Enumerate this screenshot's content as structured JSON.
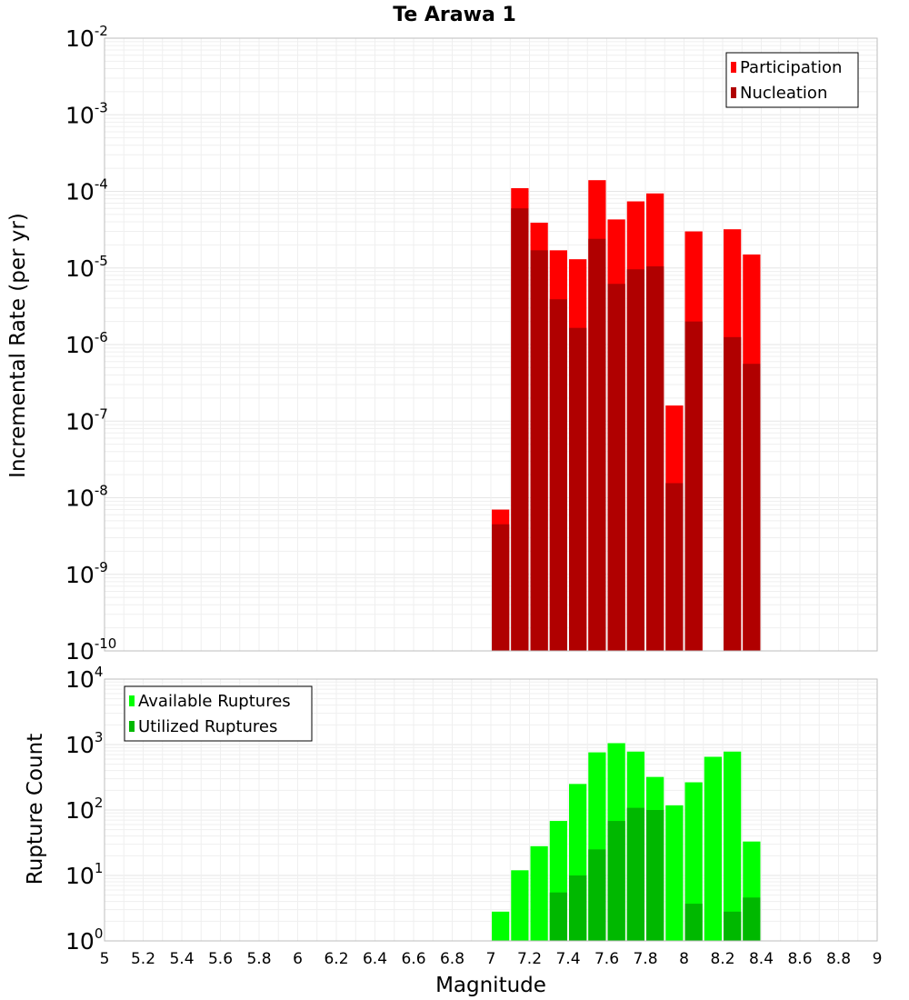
{
  "title": "Te Arawa 1",
  "colors": {
    "participation": "#ff0000",
    "nucleation": "#b00000",
    "available": "#00ff00",
    "utilized": "#00b800"
  },
  "chart_data": [
    {
      "type": "bar",
      "name": "rates",
      "ylabel": "Incremental Rate (per yr)",
      "yscale": "log",
      "ylim_exp": [
        -10,
        -2
      ],
      "xlim": [
        5,
        9
      ],
      "bin_width": 0.1,
      "grid": true,
      "legend_position": "top-right",
      "series": [
        {
          "name": "Participation",
          "x": [
            7.05,
            7.15,
            7.25,
            7.35,
            7.45,
            7.55,
            7.65,
            7.75,
            7.85,
            7.95,
            8.05,
            8.25,
            8.35
          ],
          "values": [
            7e-09,
            0.00011,
            3.9e-05,
            1.7e-05,
            1.3e-05,
            0.00014,
            4.3e-05,
            7.4e-05,
            9.4e-05,
            1.6e-07,
            3e-05,
            3.2e-05,
            1.5e-05
          ]
        },
        {
          "name": "Nucleation",
          "x": [
            7.05,
            7.15,
            7.25,
            7.35,
            7.45,
            7.55,
            7.65,
            7.75,
            7.85,
            7.95,
            8.05,
            8.25,
            8.35
          ],
          "values": [
            4.5e-09,
            6e-05,
            1.7e-05,
            3.9e-06,
            1.65e-06,
            2.4e-05,
            6.2e-06,
            9.6e-06,
            1.05e-05,
            1.55e-08,
            2e-06,
            1.25e-06,
            5.6e-07
          ]
        }
      ]
    },
    {
      "type": "bar",
      "name": "ruptures",
      "ylabel": "Rupture Count",
      "yscale": "log",
      "ylim_exp": [
        0,
        4
      ],
      "xlim": [
        5,
        9
      ],
      "bin_width": 0.1,
      "xlabel": "Magnitude",
      "xticks": [
        "5",
        "5.2",
        "5.4",
        "5.6",
        "5.8",
        "6",
        "6.2",
        "6.4",
        "6.6",
        "6.8",
        "7",
        "7.2",
        "7.4",
        "7.6",
        "7.8",
        "8",
        "8.2",
        "8.4",
        "8.6",
        "8.8",
        "9"
      ],
      "grid": true,
      "legend_position": "top-left",
      "series": [
        {
          "name": "Available Ruptures",
          "x": [
            6.85,
            7.05,
            7.15,
            7.25,
            7.35,
            7.45,
            7.55,
            7.65,
            7.75,
            7.85,
            7.95,
            8.05,
            8.15,
            8.25,
            8.35
          ],
          "values": [
            1,
            2.8,
            12,
            28,
            68,
            250,
            760,
            1050,
            780,
            320,
            118,
            265,
            650,
            780,
            33
          ]
        },
        {
          "name": "Utilized Ruptures",
          "x": [
            7.05,
            7.15,
            7.25,
            7.35,
            7.45,
            7.55,
            7.65,
            7.75,
            7.85,
            7.95,
            8.05,
            8.25,
            8.35
          ],
          "values": [
            1,
            1,
            1,
            5.5,
            10,
            25,
            68,
            108,
            100,
            1,
            3.7,
            2.8,
            4.6
          ]
        }
      ]
    }
  ]
}
